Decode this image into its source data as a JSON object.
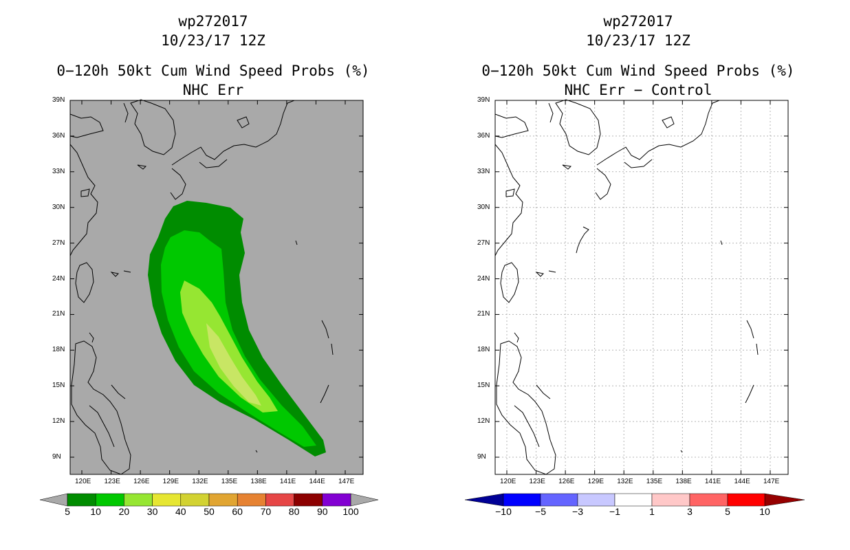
{
  "left": {
    "title_line1": "wp272017",
    "title_line2": "10/23/17 12Z",
    "title_line3": "0−120h 50kt Cum Wind Speed Probs (%)",
    "title_line4": "NHC Err",
    "background_color": "#a9a9a9",
    "colorbar": {
      "labels": [
        "5",
        "10",
        "20",
        "30",
        "40",
        "50",
        "60",
        "70",
        "80",
        "90",
        "100"
      ],
      "colors": [
        "#008c00",
        "#00c800",
        "#96e632",
        "#e6e632",
        "#d2d232",
        "#e1a532",
        "#e68232",
        "#e64646",
        "#8c0000",
        "#8200d2"
      ],
      "end_color": "#a9a9a9"
    }
  },
  "right": {
    "title_line1": "wp272017",
    "title_line2": "10/23/17 12Z",
    "title_line3": "0−120h 50kt Cum Wind Speed Probs (%)",
    "title_line4": "NHC Err − Control",
    "background_color": "#ffffff",
    "colorbar": {
      "labels": [
        "−10",
        "−5",
        "−3",
        "−1",
        "1",
        "3",
        "5",
        "10"
      ],
      "colors": [
        "#000096",
        "#0000ff",
        "#6464ff",
        "#c8c8ff",
        "#ffffff",
        "#ffc8c8",
        "#ff6464",
        "#ff0000",
        "#960000"
      ],
      "end_colors": [
        "#000096",
        "#960000"
      ]
    }
  },
  "axes": {
    "lon_labels": [
      "120E",
      "123E",
      "126E",
      "129E",
      "132E",
      "135E",
      "138E",
      "141E",
      "144E",
      "147E"
    ],
    "lat_labels": [
      "39N",
      "36N",
      "33N",
      "30N",
      "27N",
      "24N",
      "21N",
      "18N",
      "15N",
      "12N",
      "9N"
    ]
  },
  "probability_field": {
    "levels": [
      5,
      10,
      20
    ],
    "level_colors": [
      "#008c00",
      "#00c800",
      "#96e632",
      "#c8e664"
    ]
  }
}
